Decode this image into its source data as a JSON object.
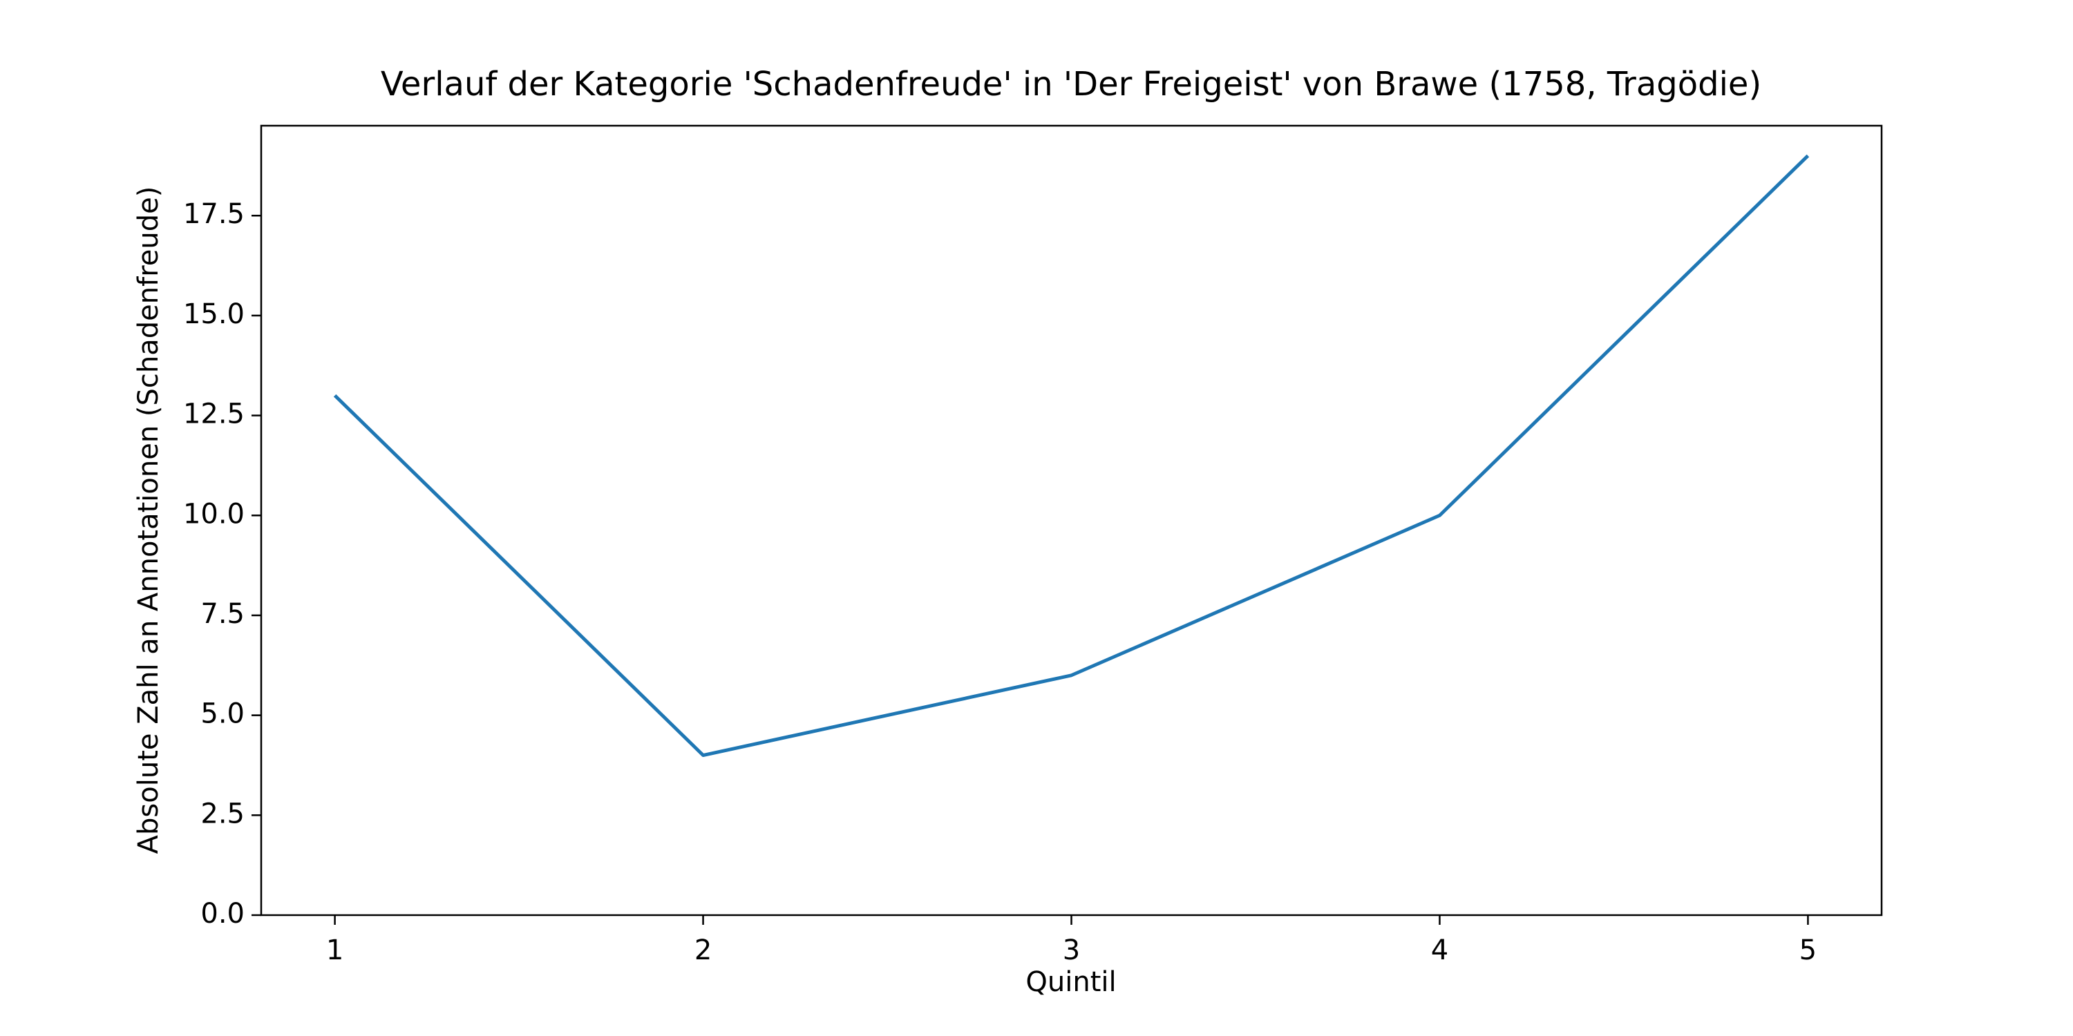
{
  "chart_data": {
    "type": "line",
    "title": "Verlauf der Kategorie 'Schadenfreude' in 'Der Freigeist' von Brawe (1758, Tragödie)",
    "xlabel": "Quintil",
    "ylabel": "Absolute Zahl an Annotationen (Schadenfreude)",
    "x": [
      1,
      2,
      3,
      4,
      5
    ],
    "series": [
      {
        "values": [
          13,
          4,
          6,
          10,
          19
        ],
        "color": "#1f77b4"
      }
    ],
    "xlim": [
      0.8,
      5.2
    ],
    "ylim": [
      0,
      19.75
    ],
    "xticks": [
      1,
      2,
      3,
      4,
      5
    ],
    "xtick_labels": [
      "1",
      "2",
      "3",
      "4",
      "5"
    ],
    "yticks": [
      0,
      2.5,
      5,
      7.5,
      10,
      12.5,
      15,
      17.5
    ],
    "ytick_labels": [
      "0.0",
      "2.5",
      "5.0",
      "7.5",
      "10.0",
      "12.5",
      "15.0",
      "17.5"
    ],
    "grid": false,
    "legend": "none"
  }
}
